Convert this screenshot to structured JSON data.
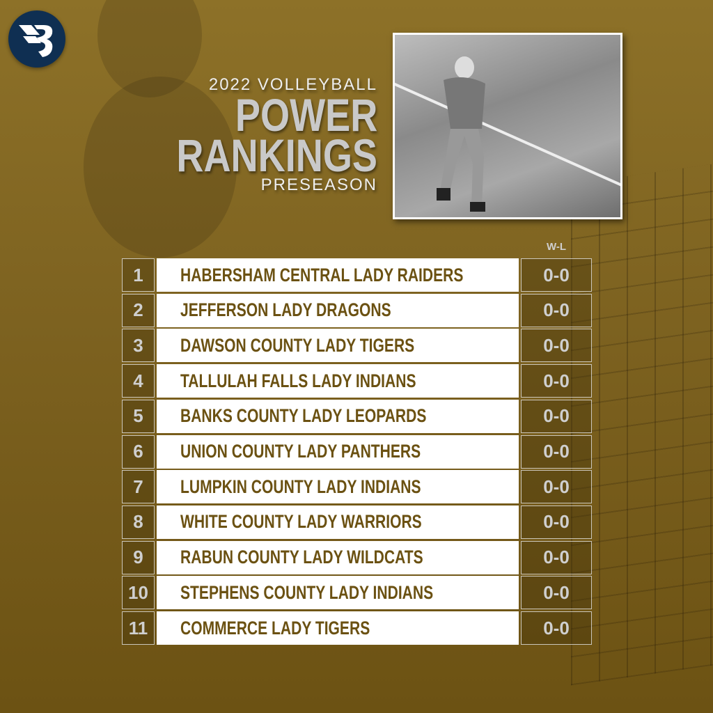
{
  "header": {
    "year_line": "2022 VOLLEYBALL",
    "title_line1": "POWER",
    "title_line2": "RANKINGS",
    "subtitle": "PRESEASON"
  },
  "logo": {
    "letter": "B",
    "color": "#0f2f52"
  },
  "table": {
    "record_header": "W-L",
    "rows": [
      {
        "rank": "1",
        "team": "HABERSHAM CENTRAL LADY RAIDERS",
        "record": "0-0"
      },
      {
        "rank": "2",
        "team": "JEFFERSON LADY DRAGONS",
        "record": "0-0"
      },
      {
        "rank": "3",
        "team": "DAWSON COUNTY LADY TIGERS",
        "record": "0-0"
      },
      {
        "rank": "4",
        "team": "TALLULAH FALLS LADY INDIANS",
        "record": "0-0"
      },
      {
        "rank": "5",
        "team": "BANKS COUNTY LADY LEOPARDS",
        "record": "0-0"
      },
      {
        "rank": "6",
        "team": "UNION COUNTY LADY PANTHERS",
        "record": "0-0"
      },
      {
        "rank": "7",
        "team": "LUMPKIN COUNTY LADY INDIANS",
        "record": "0-0"
      },
      {
        "rank": "8",
        "team": "WHITE COUNTY LADY WARRIORS",
        "record": "0-0"
      },
      {
        "rank": "9",
        "team": "RABUN COUNTY LADY WILDCATS",
        "record": "0-0"
      },
      {
        "rank": "10",
        "team": "STEPHENS COUNTY LADY INDIANS",
        "record": "0-0"
      },
      {
        "rank": "11",
        "team": "COMMERCE LADY TIGERS",
        "record": "0-0"
      }
    ]
  },
  "colors": {
    "background": "#7d6220",
    "team_text": "#6b5112",
    "logo_bg": "#0f2f52"
  }
}
